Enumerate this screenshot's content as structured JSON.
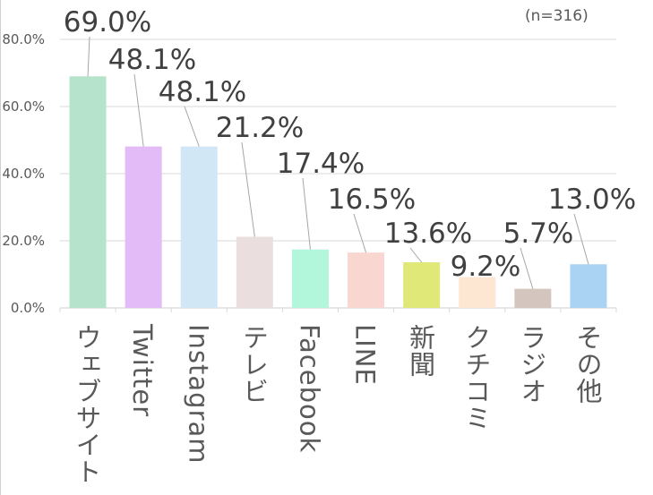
{
  "chart_data": {
    "type": "bar",
    "note": "(n=316)",
    "categories": [
      "ウェブサイト",
      "Twitter",
      "Instagram",
      "テレビ",
      "Facebook",
      "LINE",
      "新聞",
      "クチコミ",
      "ラジオ",
      "その他"
    ],
    "values": [
      69.0,
      48.1,
      48.1,
      21.2,
      17.4,
      16.5,
      13.6,
      9.2,
      5.7,
      13.0
    ],
    "data_labels": [
      "69.0%",
      "48.1%",
      "48.1%",
      "21.2%",
      "17.4%",
      "16.5%",
      "13.6%",
      "9.2%",
      "5.7%",
      "13.0%"
    ],
    "colors": [
      "#b6e3cc",
      "#e3bbf7",
      "#d2e7f6",
      "#eadede",
      "#b2f6dc",
      "#f9d6d0",
      "#e0e877",
      "#fde7d2",
      "#d4c6bf",
      "#aad2f2"
    ],
    "yticks": [
      "0.0%",
      "20.0%",
      "40.0%",
      "60.0%",
      "80.0%"
    ],
    "ylim": [
      0,
      80
    ],
    "grid": true,
    "xlabel": "",
    "ylabel": ""
  }
}
